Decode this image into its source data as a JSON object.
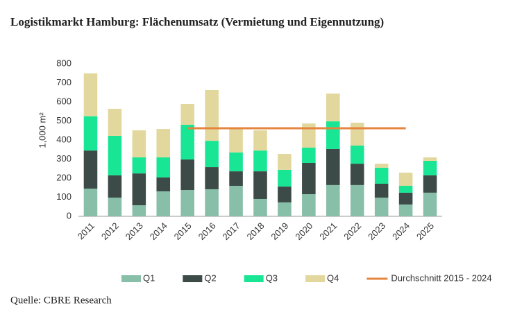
{
  "chart_data": {
    "type": "stacked-bar",
    "title": "Logistikmarkt Hamburg: Flächenumsatz (Vermietung und Eigennutzung)",
    "y_label": "1,000 m²",
    "source": "Quelle: CBRE Research",
    "categories": [
      "2011",
      "2012",
      "2013",
      "2014",
      "2015",
      "2016",
      "2017",
      "2018",
      "2019",
      "2020",
      "2021",
      "2022",
      "2023",
      "2024",
      "2025"
    ],
    "series": [
      {
        "name": "Q1",
        "color": "#88bfa9",
        "values": [
          145,
          98,
          58,
          131,
          138,
          142,
          160,
          91,
          73,
          116,
          164,
          164,
          98,
          62,
          124
        ]
      },
      {
        "name": "Q2",
        "color": "#3c4a48",
        "values": [
          200,
          117,
          167,
          73,
          160,
          116,
          76,
          145,
          83,
          164,
          189,
          112,
          73,
          62,
          91
        ]
      },
      {
        "name": "Q3",
        "color": "#19e695",
        "values": [
          180,
          207,
          84,
          105,
          182,
          138,
          99,
          109,
          88,
          80,
          145,
          95,
          84,
          36,
          76
        ]
      },
      {
        "name": "Q4",
        "color": "#e2d89e",
        "values": [
          225,
          142,
          142,
          149,
          109,
          266,
          123,
          106,
          83,
          127,
          146,
          120,
          21,
          69,
          18
        ]
      },
      {
        "name": "Durchschnitt 2015 - 2024",
        "color": "#e5843d",
        "kind": "line",
        "values": [
          null,
          null,
          null,
          null,
          462,
          462,
          462,
          462,
          462,
          462,
          462,
          462,
          462,
          462,
          null
        ]
      }
    ],
    "ylim": [
      0,
      800
    ],
    "yticks": [
      0,
      100,
      200,
      300,
      400,
      500,
      600,
      700,
      800
    ],
    "grid": false
  }
}
